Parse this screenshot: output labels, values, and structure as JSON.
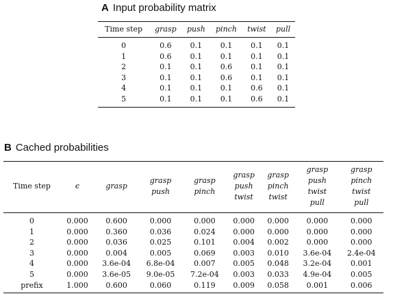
{
  "section_a": {
    "letter": "A",
    "title": "Input probability matrix",
    "headers": [
      "Time step",
      "grasp",
      "push",
      "pinch",
      "twist",
      "pull"
    ],
    "rows": [
      [
        "0",
        "0.6",
        "0.1",
        "0.1",
        "0.1",
        "0.1"
      ],
      [
        "1",
        "0.6",
        "0.1",
        "0.1",
        "0.1",
        "0.1"
      ],
      [
        "2",
        "0.1",
        "0.1",
        "0.6",
        "0.1",
        "0.1"
      ],
      [
        "3",
        "0.1",
        "0.1",
        "0.6",
        "0.1",
        "0.1"
      ],
      [
        "4",
        "0.1",
        "0.1",
        "0.1",
        "0.6",
        "0.1"
      ],
      [
        "5",
        "0.1",
        "0.1",
        "0.1",
        "0.6",
        "0.1"
      ]
    ]
  },
  "section_b": {
    "letter": "B",
    "title": "Cached probabilities",
    "headers": [
      [
        "Time step"
      ],
      [
        "ϵ"
      ],
      [
        "grasp"
      ],
      [
        "grasp",
        "push"
      ],
      [
        "grasp",
        "pinch"
      ],
      [
        "grasp",
        "push",
        "twist"
      ],
      [
        "grasp",
        "pinch",
        "twist"
      ],
      [
        "grasp",
        "push",
        "twist",
        "pull"
      ],
      [
        "grasp",
        "pinch",
        "twist",
        "pull"
      ]
    ],
    "rows": [
      [
        "0",
        "0.000",
        "0.600",
        "0.000",
        "0.000",
        "0.000",
        "0.000",
        "0.000",
        "0.000"
      ],
      [
        "1",
        "0.000",
        "0.360",
        "0.036",
        "0.024",
        "0.000",
        "0.000",
        "0.000",
        "0.000"
      ],
      [
        "2",
        "0.000",
        "0.036",
        "0.025",
        "0.101",
        "0.004",
        "0.002",
        "0.000",
        "0.000"
      ],
      [
        "3",
        "0.000",
        "0.004",
        "0.005",
        "0.069",
        "0.003",
        "0.010",
        "3.6e-04",
        "2.4e-04"
      ],
      [
        "4",
        "0.000",
        "3.6e-04",
        "6.8e-04",
        "0.007",
        "0.005",
        "0.048",
        "3.2e-04",
        "0.001"
      ],
      [
        "5",
        "0.000",
        "3.6e-05",
        "9.0e-05",
        "7.2e-04",
        "0.003",
        "0.033",
        "4.9e-04",
        "0.005"
      ],
      [
        "prefix",
        "1.000",
        "0.600",
        "0.060",
        "0.119",
        "0.009",
        "0.058",
        "0.001",
        "0.006"
      ]
    ]
  }
}
